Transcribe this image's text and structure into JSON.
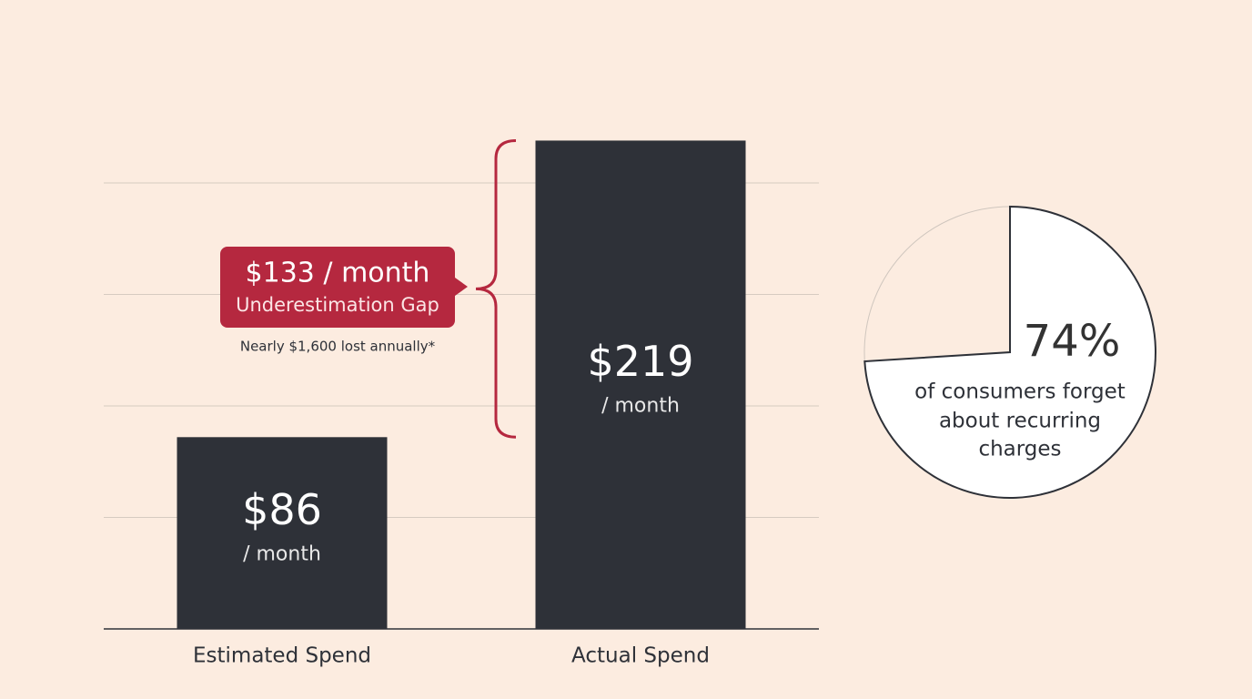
{
  "chart_data": [
    {
      "type": "bar",
      "categories": [
        "Estimated Spend",
        "Actual Spend"
      ],
      "values": [
        86,
        219
      ],
      "value_labels": [
        "$86",
        "$219"
      ],
      "unit_label": "/ month",
      "color": "#2e3138",
      "ylim": [
        0,
        220
      ],
      "yticks": [
        0,
        50,
        100,
        150,
        200
      ],
      "grid": true,
      "annotation": {
        "title": "$133 / month",
        "subtitle": "Underestimation Gap",
        "note": "Nearly $1,600 lost annually*",
        "color": "#b5283f"
      }
    },
    {
      "type": "pie",
      "values": [
        74
      ],
      "value_labels": [
        "74%"
      ],
      "color": "#ffffff",
      "caption": [
        "of consumers forget",
        "about recurring",
        "charges"
      ]
    }
  ]
}
